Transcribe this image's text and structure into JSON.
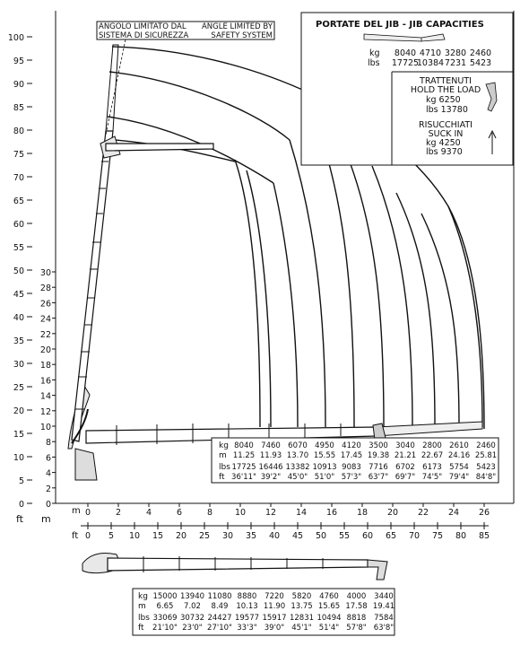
{
  "ft_axis_label": "ft",
  "m_axis_label": "m",
  "left_ft_ticks": [
    "0",
    "5",
    "10",
    "15",
    "20",
    "25",
    "30",
    "35",
    "40",
    "45",
    "50",
    "55",
    "60",
    "65",
    "70",
    "75",
    "80",
    "85",
    "90",
    "95",
    "100"
  ],
  "left_m_ticks": [
    "0",
    "2",
    "4",
    "6",
    "8",
    "10",
    "12",
    "14",
    "16",
    "18",
    "20",
    "22",
    "24",
    "26",
    "28",
    "30"
  ],
  "bottom_m_ticks": [
    "0",
    "2",
    "4",
    "6",
    "8",
    "10",
    "12",
    "14",
    "16",
    "18",
    "20",
    "22",
    "24",
    "26"
  ],
  "bottom_ft_ticks": [
    "0",
    "5",
    "10",
    "15",
    "20",
    "25",
    "30",
    "35",
    "40",
    "45",
    "50",
    "55",
    "60",
    "65",
    "70",
    "75",
    "80",
    "85"
  ],
  "safety_note": {
    "it_line1": "ANGOLO LIMITATO DAL",
    "it_line2": "SISTEMA DI SICUREZZA",
    "en_line1": "ANGLE LIMITED BY",
    "en_line2": "SAFETY SYSTEM"
  },
  "jib_box": {
    "title": "PORTATE DEL JIB   -   JIB CAPACITIES",
    "kg_label": "kg",
    "kg_values": [
      "8040",
      "4710",
      "3280",
      "2460"
    ],
    "lbs_label": "lbs",
    "lbs_values": [
      "17725",
      "10384",
      "7231",
      "5423"
    ],
    "hold_title1": "TRATTENUTI",
    "hold_title2": "HOLD THE LOAD",
    "hold_kg": "kg    6250",
    "hold_lbs": "lbs  13780",
    "suck_title1": "RISUCCHIATI",
    "suck_title2": "SUCK IN",
    "suck_kg": "kg    4250",
    "suck_lbs": "lbs    9370"
  },
  "main_table": {
    "row_labels": [
      "kg",
      "m",
      "lbs",
      "ft"
    ],
    "kg": [
      "8040",
      "7460",
      "6070",
      "4950",
      "4120",
      "3500",
      "3040",
      "2800",
      "2610",
      "2460"
    ],
    "m": [
      "11.25",
      "11.93",
      "13.70",
      "15.55",
      "17.45",
      "19.38",
      "21.21",
      "22.67",
      "24.16",
      "25.81"
    ],
    "lbs": [
      "17725",
      "16446",
      "13382",
      "10913",
      "9083",
      "7716",
      "6702",
      "6173",
      "5754",
      "5423"
    ],
    "ft": [
      "36'11\"",
      "39'2\"",
      "45'0\"",
      "51'0\"",
      "57'3\"",
      "63'7\"",
      "69'7\"",
      "74'5\"",
      "79'4\"",
      "84'8\""
    ]
  },
  "bottom_table": {
    "row_labels": [
      "kg",
      "m",
      "lbs",
      "ft"
    ],
    "kg": [
      "15000",
      "13940",
      "11080",
      "8880",
      "7220",
      "5820",
      "4760",
      "4000",
      "3440"
    ],
    "m": [
      "6.65",
      "7.02",
      "8.49",
      "10.13",
      "11.90",
      "13.75",
      "15.65",
      "17.58",
      "19.41"
    ],
    "lbs": [
      "33069",
      "30732",
      "24427",
      "19577",
      "15917",
      "12831",
      "10494",
      "8818",
      "7584"
    ],
    "ft": [
      "21'10\"",
      "23'0\"",
      "27'10\"",
      "33'3\"",
      "39'0\"",
      "45'1\"",
      "51'4\"",
      "57'8\"",
      "63'8\""
    ]
  }
}
